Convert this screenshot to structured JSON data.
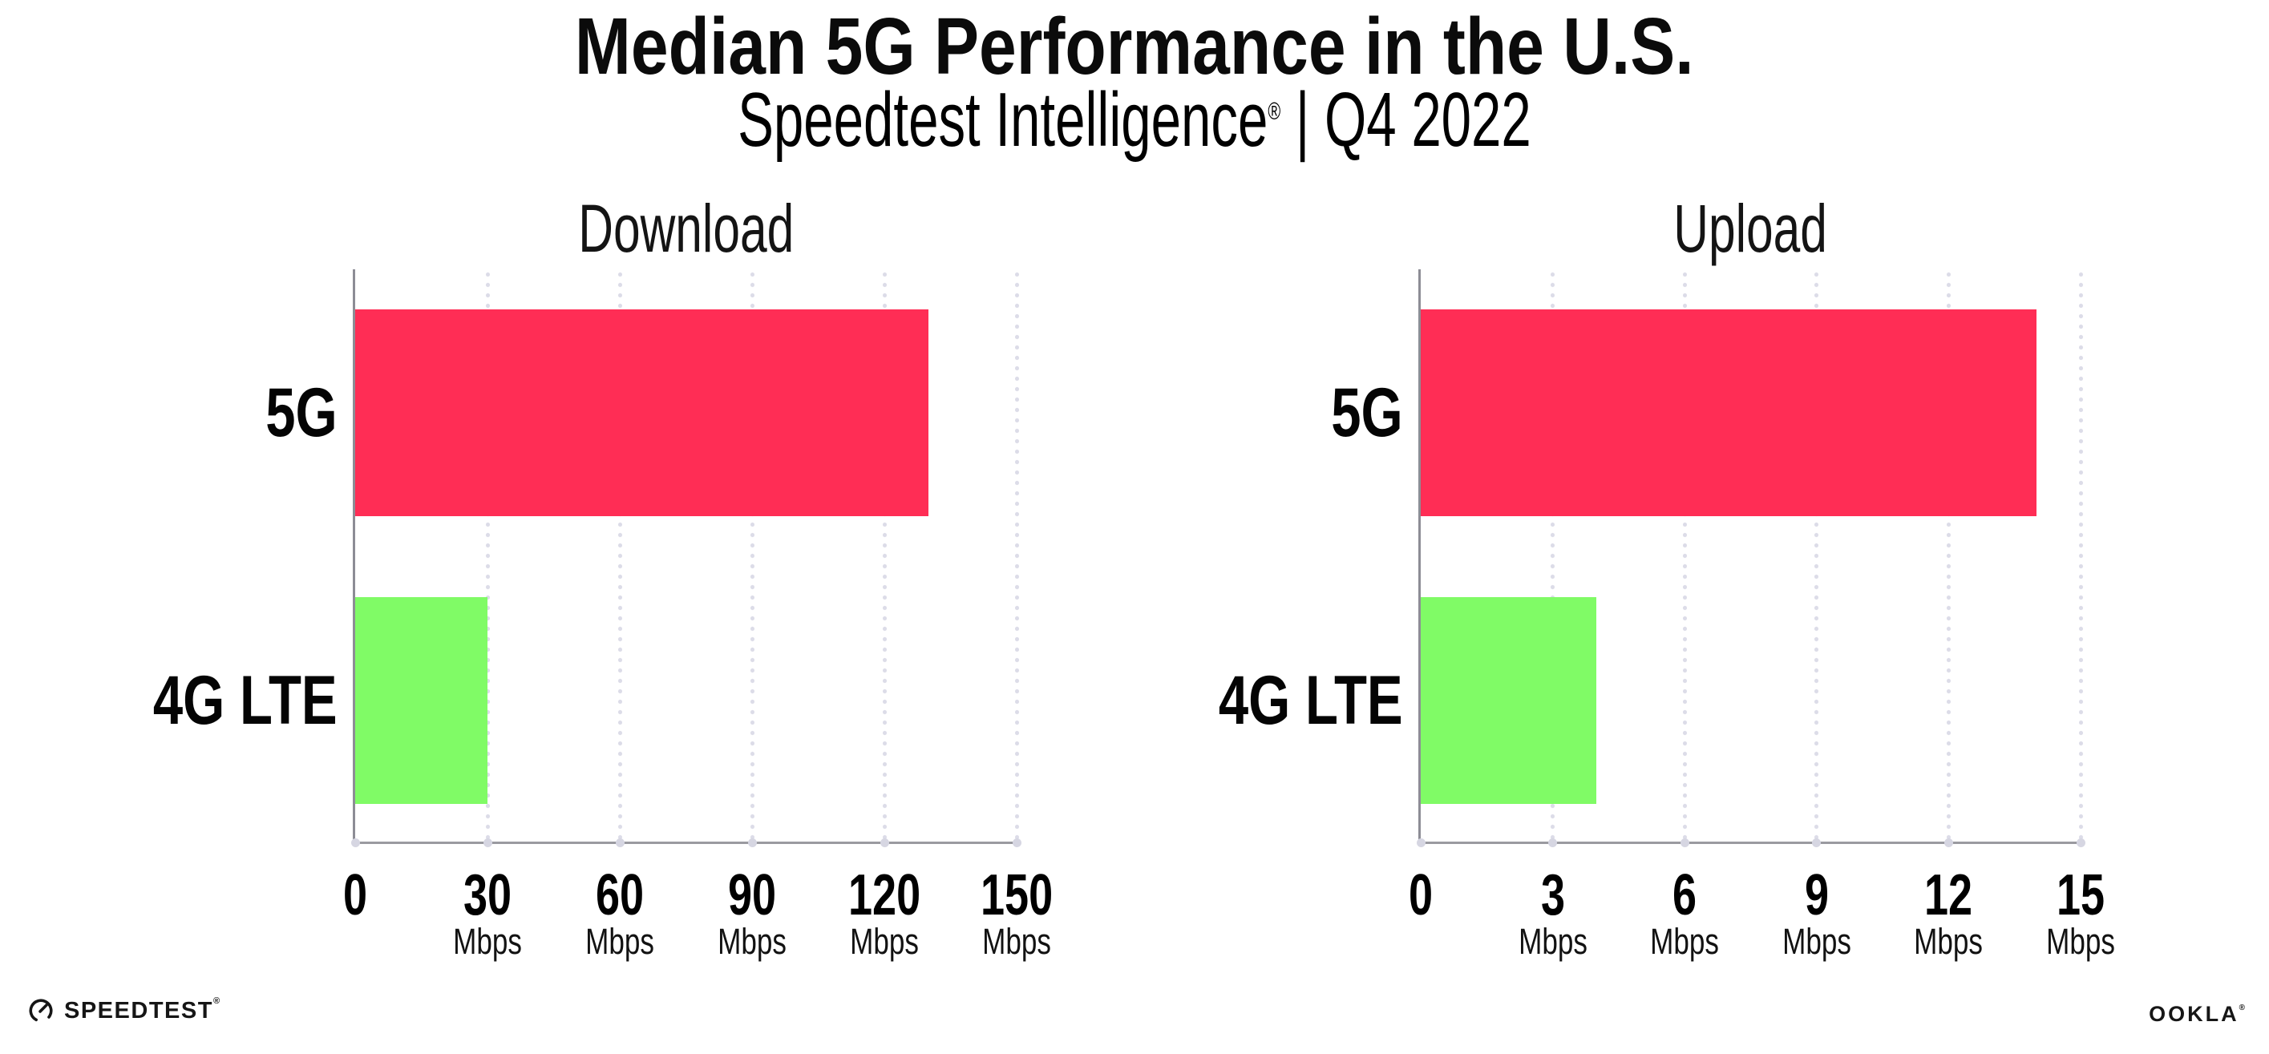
{
  "header": {
    "title": "Median 5G Performance in the U.S.",
    "subtitle": {
      "brand": "Speedtest Intelligence",
      "reg": "®",
      "rest": " | Q4 2022"
    }
  },
  "chart_data": [
    {
      "type": "bar",
      "orientation": "horizontal",
      "title": "Download",
      "categories": [
        "5G",
        "4G LTE"
      ],
      "values": [
        130,
        30
      ],
      "unit": "Mbps",
      "xlabel": "",
      "ylabel": "",
      "xlim": [
        0,
        150
      ],
      "ticks": [
        0,
        30,
        60,
        90,
        120,
        150
      ],
      "tick_unit_label": "Mbps",
      "grid": "dotted-vertical",
      "legend": "none",
      "bar_colors": [
        "#FF2D55",
        "#80FB66"
      ]
    },
    {
      "type": "bar",
      "orientation": "horizontal",
      "title": "Upload",
      "categories": [
        "5G",
        "4G LTE"
      ],
      "values": [
        14,
        4
      ],
      "unit": "Mbps",
      "xlabel": "",
      "ylabel": "",
      "xlim": [
        0,
        15
      ],
      "ticks": [
        0,
        3,
        6,
        9,
        12,
        15
      ],
      "tick_unit_label": "Mbps",
      "grid": "dotted-vertical",
      "legend": "none",
      "bar_colors": [
        "#FF2D55",
        "#80FB66"
      ]
    }
  ],
  "footer": {
    "speedtest_wordmark": "SPEEDTEST",
    "speedtest_reg": "®",
    "ookla_wordmark": "OOKLA",
    "ookla_reg": "®"
  },
  "colors": {
    "bar_5g": "#FF2D55",
    "bar_4g_lte": "#80FB66",
    "axis_line": "#9a9aa0",
    "grid_dot": "#dcdce8",
    "text": "#0b0b0b"
  }
}
